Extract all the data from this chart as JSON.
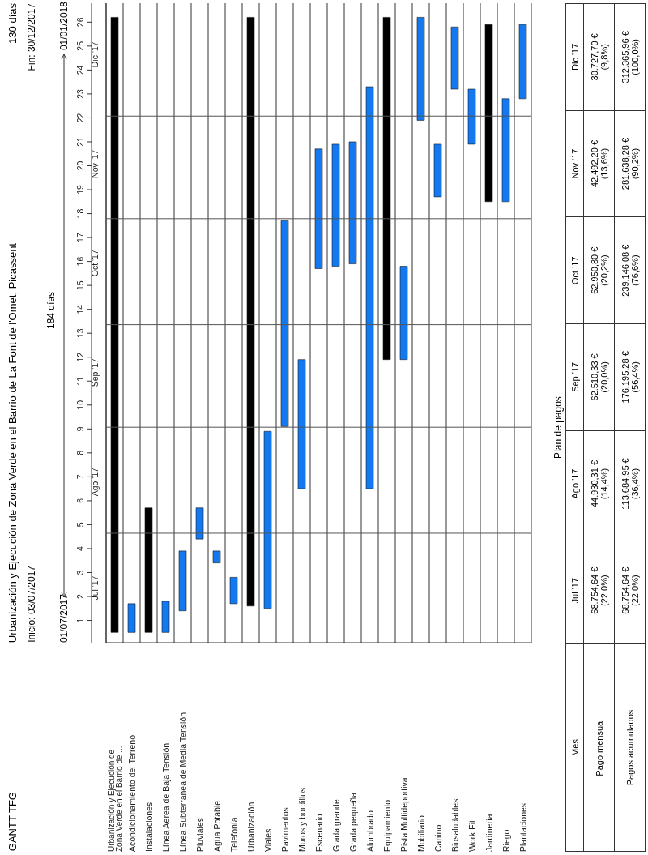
{
  "chart_data": [
    {
      "type": "bar",
      "title": "Urbanización y Ejecución de Zona Verde en el Barrio de La Font de l'Omet, Picassent",
      "subtitle": "Inicio: 03/07/2017",
      "annotations": [
        "GANTT TFG",
        "130 días",
        "Fin: 30/12/2017",
        "184 días",
        "01/07/2017",
        "01/01/2018"
      ],
      "categories": [
        "Urbanización y Ejecución de Zona Verde en el Barrio de ...",
        "Acondicionamiento del Terreno",
        "Instalaciones",
        "Línea Aerea de Baja Tensión",
        "Línea Subterranea de Media Tensión",
        "Pluviales",
        "Agua Potable",
        "Telefonía",
        "Urbanización",
        "Viales",
        "Pavimentos",
        "Muros y bordillos",
        "Escenario",
        "Grada grande",
        "Grada pequeña",
        "Alumbrado",
        "Equipamiento",
        "Pista Multideportiva",
        "Mobiliario",
        "Canino",
        "Biosaludables",
        "Work Fit",
        "Jardinería",
        "Riego",
        "Plantaciones"
      ],
      "base": [
        0,
        0,
        0,
        0,
        0.9,
        3.9,
        2.9,
        1.2,
        1.1,
        1.0,
        8.6,
        6.0,
        15.2,
        15.3,
        15.4,
        6.0,
        11.4,
        11.4,
        21.4,
        18.2,
        22.7,
        20.4,
        18.0,
        18.0,
        22.3
      ],
      "values": [
        25.7,
        1.2,
        5.2,
        1.3,
        2.5,
        1.3,
        0.5,
        1.1,
        24.6,
        7.4,
        8.6,
        5.4,
        5.0,
        5.1,
        5.1,
        16.8,
        14.3,
        3.9,
        4.3,
        2.2,
        2.6,
        2.3,
        7.4,
        4.3,
        3.1
      ],
      "colors": [
        "#000000",
        "#1478f0",
        "#000000",
        "#1478f0",
        "#1478f0",
        "#1478f0",
        "#1478f0",
        "#1478f0",
        "#000000",
        "#1478f0",
        "#1478f0",
        "#1478f0",
        "#1478f0",
        "#1478f0",
        "#1478f0",
        "#1478f0",
        "#000000",
        "#1478f0",
        "#1478f0",
        "#1478f0",
        "#1478f0",
        "#1478f0",
        "#000000",
        "#1478f0",
        "#1478f0"
      ],
      "ylim": [
        -0.43,
        26.29
      ],
      "yticks": [
        {
          "value": 0.5,
          "label": "1"
        },
        {
          "value": 1.5,
          "label": "2"
        },
        {
          "value": 2.5,
          "label": "3"
        },
        {
          "value": 3.5,
          "label": "4"
        },
        {
          "value": 4.5,
          "label": "5"
        },
        {
          "value": 5.5,
          "label": "6"
        },
        {
          "value": 6.5,
          "label": "7"
        },
        {
          "value": 7.5,
          "label": "8"
        },
        {
          "value": 8.5,
          "label": "9"
        },
        {
          "value": 9.5,
          "label": "10"
        },
        {
          "value": 10.5,
          "label": "11"
        },
        {
          "value": 11.5,
          "label": "12"
        },
        {
          "value": 12.5,
          "label": "13"
        },
        {
          "value": 13.5,
          "label": "14"
        },
        {
          "value": 14.5,
          "label": "15"
        },
        {
          "value": 15.5,
          "label": "16"
        },
        {
          "value": 16.5,
          "label": "17"
        },
        {
          "value": 17.5,
          "label": "18"
        },
        {
          "value": 18.5,
          "label": "19"
        },
        {
          "value": 19.5,
          "label": "20"
        },
        {
          "value": 20.5,
          "label": "21"
        },
        {
          "value": 21.5,
          "label": "22"
        },
        {
          "value": 22.5,
          "label": "23"
        },
        {
          "value": 23.5,
          "label": "24"
        },
        {
          "value": 24.5,
          "label": "25"
        },
        {
          "value": 25.5,
          "label": "26"
        }
      ],
      "y2lim": [
        "2017-06-30",
        "2018-01-03"
      ],
      "y2ticks": [
        {
          "value": "2017-07-16",
          "label": "Jul '17"
        },
        {
          "value": "2017-08-16",
          "label": "Ago '17"
        },
        {
          "value": "2017-09-17",
          "label": "Sep '17"
        },
        {
          "value": "2017-10-19",
          "label": "Oct '17"
        },
        {
          "value": "2017-11-17",
          "label": "Nov '17"
        },
        {
          "value": "2017-12-19",
          "label": "Dic '17"
        }
      ],
      "ref_lines": [
        {
          "axis": "y2",
          "value": "2017-08-01",
          "color": "#555555"
        },
        {
          "axis": "y2",
          "value": "2017-09-01",
          "color": "#555555"
        },
        {
          "axis": "y2",
          "value": "2017-10-01",
          "color": "#555555"
        },
        {
          "axis": "y2",
          "value": "2017-11-01",
          "color": "#555555"
        },
        {
          "axis": "y2",
          "value": "2017-12-01",
          "color": "#555555"
        }
      ],
      "grid": "x"
    },
    {
      "type": "other",
      "title": "Plan de pagos",
      "xlabel": "Mes",
      "categories": [
        "Jul '17",
        "Ago '17",
        "Sep '17",
        "Oct '17",
        "Nov '17",
        "Dic '17"
      ],
      "series": [
        {
          "name": "Pago mensual",
          "values": [
            68754.64,
            44930.31,
            62510.33,
            62950.8,
            42492.2,
            30727.7
          ],
          "value_labels": [
            "68.754,64 €\n(22,0%)",
            "44.930,31 €\n(14,4%)",
            "62.510,33 €\n(20,0%)",
            "62.950,80 €\n(20,2%)",
            "42.492,20 €\n(13,6%)",
            "30.727,70 €\n(9,8%)"
          ]
        },
        {
          "name": "Pagos acumulados",
          "values": [
            68754.64,
            113684.95,
            176195.28,
            239146.08,
            281638.28,
            312365.96
          ],
          "value_labels": [
            "68.754,64 €\n(22,0%)",
            "113.684,95 €\n(36,4%)",
            "176.195,28 €\n(56,4%)",
            "239.146,08 €\n(76,6%)",
            "281.638,28 €\n(90,2%)",
            "312.365,96 €\n(100,0%)"
          ]
        }
      ]
    }
  ]
}
